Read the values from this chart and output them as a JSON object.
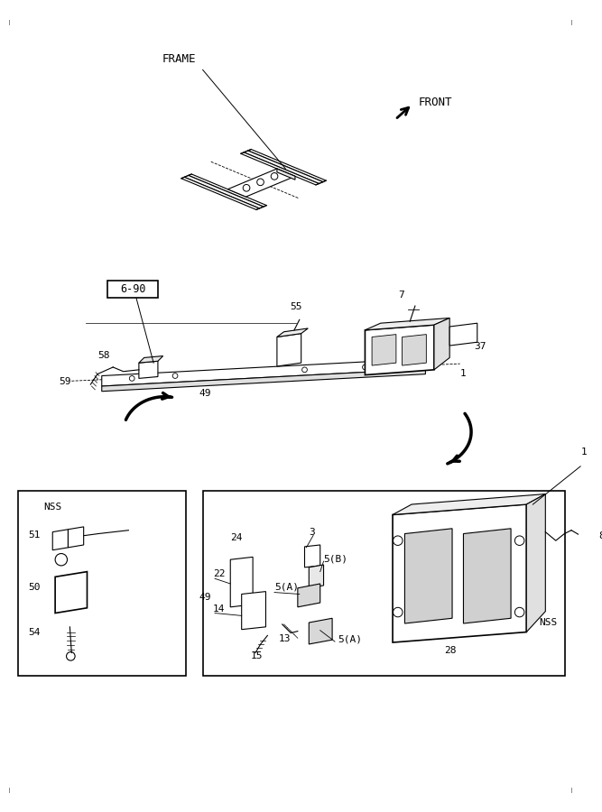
{
  "bg_color": "#ffffff",
  "line_color": "#000000",
  "frame_label": "FRAME",
  "front_label": "FRONT",
  "ref_label": "6-90",
  "figsize": [
    6.67,
    9.0
  ],
  "dpi": 100
}
